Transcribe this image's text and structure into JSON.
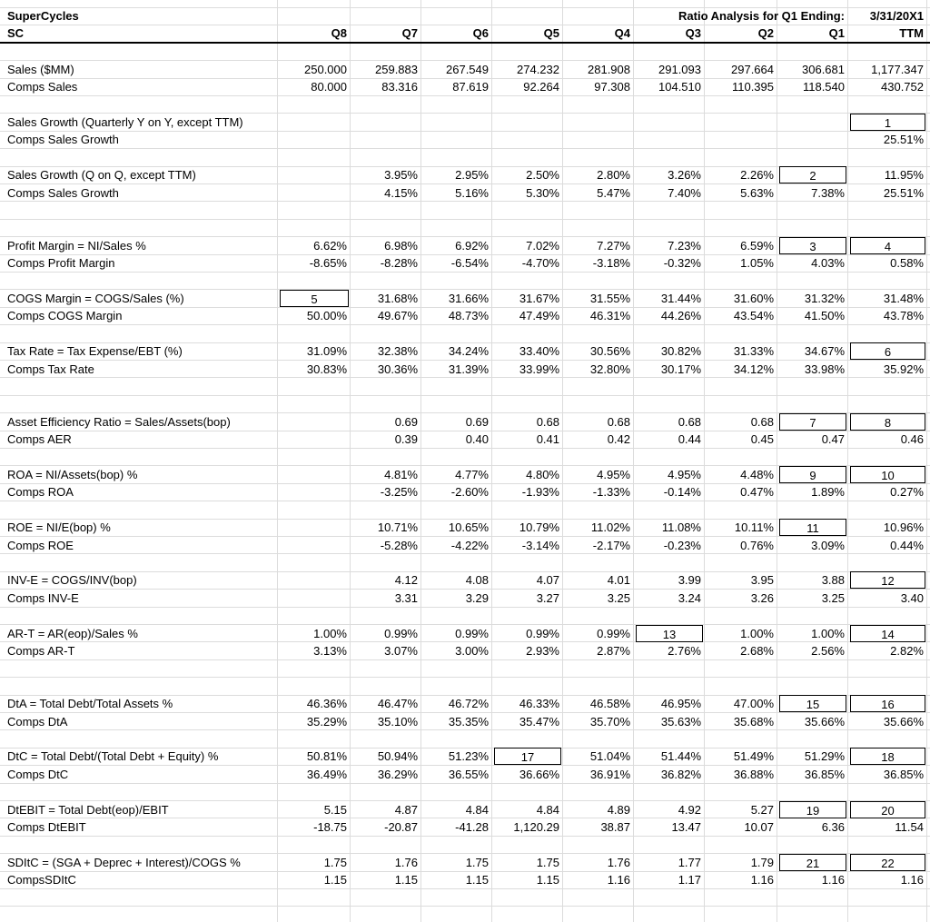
{
  "header": {
    "title": "SuperCycles",
    "analysis": "Ratio Analysis for Q1 Ending:",
    "date": "3/31/20X1"
  },
  "columns": [
    "SC",
    "Q8",
    "Q7",
    "Q6",
    "Q5",
    "Q4",
    "Q3",
    "Q2",
    "Q1",
    "TTM"
  ],
  "rows": [
    null,
    {
      "label": "Sales ($MM)",
      "cells": [
        "250.000",
        "259.883",
        "267.549",
        "274.232",
        "281.908",
        "291.093",
        "297.664",
        "306.681",
        "1,177.347"
      ]
    },
    {
      "label": "Comps Sales",
      "cells": [
        "80.000",
        "83.316",
        "87.619",
        "92.264",
        "97.308",
        "104.510",
        "110.395",
        "118.540",
        "430.752"
      ]
    },
    null,
    {
      "label": "Sales Growth (Quarterly Y on Y, except TTM)",
      "cells": [
        null,
        null,
        null,
        null,
        null,
        null,
        null,
        null,
        "1"
      ]
    },
    {
      "label": "Comps Sales Growth",
      "cells": [
        null,
        null,
        null,
        null,
        null,
        null,
        null,
        null,
        "25.51%"
      ]
    },
    null,
    {
      "label": "Sales Growth (Q on Q, except TTM)",
      "cells": [
        null,
        "3.95%",
        "2.95%",
        "2.50%",
        "2.80%",
        "3.26%",
        "2.26%",
        "2",
        "11.95%"
      ]
    },
    {
      "label": "Comps Sales Growth",
      "cells": [
        null,
        "4.15%",
        "5.16%",
        "5.30%",
        "5.47%",
        "7.40%",
        "5.63%",
        "7.38%",
        "25.51%"
      ]
    },
    null,
    null,
    {
      "label": "Profit Margin = NI/Sales %",
      "cells": [
        "6.62%",
        "6.98%",
        "6.92%",
        "7.02%",
        "7.27%",
        "7.23%",
        "6.59%",
        "3",
        "4"
      ]
    },
    {
      "label": "Comps Profit Margin",
      "cells": [
        "-8.65%",
        "-8.28%",
        "-6.54%",
        "-4.70%",
        "-3.18%",
        "-0.32%",
        "1.05%",
        "4.03%",
        "0.58%"
      ]
    },
    null,
    {
      "label": "COGS Margin = COGS/Sales (%)",
      "cells": [
        "5",
        "31.68%",
        "31.66%",
        "31.67%",
        "31.55%",
        "31.44%",
        "31.60%",
        "31.32%",
        "31.48%"
      ]
    },
    {
      "label": "Comps COGS Margin",
      "cells": [
        "50.00%",
        "49.67%",
        "48.73%",
        "47.49%",
        "46.31%",
        "44.26%",
        "43.54%",
        "41.50%",
        "43.78%"
      ]
    },
    null,
    {
      "label": "Tax Rate = Tax Expense/EBT (%)",
      "cells": [
        "31.09%",
        "32.38%",
        "34.24%",
        "33.40%",
        "30.56%",
        "30.82%",
        "31.33%",
        "34.67%",
        "6"
      ]
    },
    {
      "label": "Comps Tax Rate",
      "cells": [
        "30.83%",
        "30.36%",
        "31.39%",
        "33.99%",
        "32.80%",
        "30.17%",
        "34.12%",
        "33.98%",
        "35.92%"
      ]
    },
    null,
    null,
    {
      "label": "Asset Efficiency Ratio = Sales/Assets(bop)",
      "cells": [
        null,
        "0.69",
        "0.69",
        "0.68",
        "0.68",
        "0.68",
        "0.68",
        "7",
        "8"
      ]
    },
    {
      "label": "Comps AER",
      "cells": [
        null,
        "0.39",
        "0.40",
        "0.41",
        "0.42",
        "0.44",
        "0.45",
        "0.47",
        "0.46"
      ]
    },
    null,
    {
      "label": "ROA = NI/Assets(bop) %",
      "cells": [
        null,
        "4.81%",
        "4.77%",
        "4.80%",
        "4.95%",
        "4.95%",
        "4.48%",
        "9",
        "10"
      ]
    },
    {
      "label": "Comps ROA",
      "cells": [
        null,
        "-3.25%",
        "-2.60%",
        "-1.93%",
        "-1.33%",
        "-0.14%",
        "0.47%",
        "1.89%",
        "0.27%"
      ]
    },
    null,
    {
      "label": "ROE = NI/E(bop) %",
      "cells": [
        null,
        "10.71%",
        "10.65%",
        "10.79%",
        "11.02%",
        "11.08%",
        "10.11%",
        "11",
        "10.96%"
      ]
    },
    {
      "label": "Comps ROE",
      "cells": [
        null,
        "-5.28%",
        "-4.22%",
        "-3.14%",
        "-2.17%",
        "-0.23%",
        "0.76%",
        "3.09%",
        "0.44%"
      ]
    },
    null,
    {
      "label": "INV-E = COGS/INV(bop)",
      "cells": [
        null,
        "4.12",
        "4.08",
        "4.07",
        "4.01",
        "3.99",
        "3.95",
        "3.88",
        "12"
      ]
    },
    {
      "label": "Comps INV-E",
      "cells": [
        null,
        "3.31",
        "3.29",
        "3.27",
        "3.25",
        "3.24",
        "3.26",
        "3.25",
        "3.40"
      ]
    },
    null,
    {
      "label": "AR-T = AR(eop)/Sales %",
      "cells": [
        "1.00%",
        "0.99%",
        "0.99%",
        "0.99%",
        "0.99%",
        "13",
        "1.00%",
        "1.00%",
        "14"
      ]
    },
    {
      "label": "Comps AR-T",
      "cells": [
        "3.13%",
        "3.07%",
        "3.00%",
        "2.93%",
        "2.87%",
        "2.76%",
        "2.68%",
        "2.56%",
        "2.82%"
      ]
    },
    null,
    null,
    {
      "label": "DtA = Total Debt/Total Assets %",
      "cells": [
        "46.36%",
        "46.47%",
        "46.72%",
        "46.33%",
        "46.58%",
        "46.95%",
        "47.00%",
        "15",
        "16"
      ]
    },
    {
      "label": "Comps DtA",
      "cells": [
        "35.29%",
        "35.10%",
        "35.35%",
        "35.47%",
        "35.70%",
        "35.63%",
        "35.68%",
        "35.66%",
        "35.66%"
      ]
    },
    null,
    {
      "label": "DtC = Total Debt/(Total Debt + Equity) %",
      "cells": [
        "50.81%",
        "50.94%",
        "51.23%",
        "17",
        "51.04%",
        "51.44%",
        "51.49%",
        "51.29%",
        "18"
      ]
    },
    {
      "label": "Comps DtC",
      "cells": [
        "36.49%",
        "36.29%",
        "36.55%",
        "36.66%",
        "36.91%",
        "36.82%",
        "36.88%",
        "36.85%",
        "36.85%"
      ]
    },
    null,
    {
      "label": "DtEBIT = Total Debt(eop)/EBIT",
      "cells": [
        "5.15",
        "4.87",
        "4.84",
        "4.84",
        "4.89",
        "4.92",
        "5.27",
        "19",
        "20"
      ]
    },
    {
      "label": "Comps DtEBIT",
      "cells": [
        "-18.75",
        "-20.87",
        "-41.28",
        "1,120.29",
        "38.87",
        "13.47",
        "10.07",
        "6.36",
        "11.54"
      ]
    },
    null,
    {
      "label": "SDItC = (SGA + Deprec + Interest)/COGS %",
      "cells": [
        "1.75",
        "1.76",
        "1.75",
        "1.75",
        "1.76",
        "1.77",
        "1.79",
        "21",
        "22"
      ]
    },
    {
      "label": "CompsSDItC",
      "cells": [
        "1.15",
        "1.15",
        "1.15",
        "1.15",
        "1.16",
        "1.17",
        "1.16",
        "1.16",
        "1.16"
      ]
    },
    null
  ]
}
